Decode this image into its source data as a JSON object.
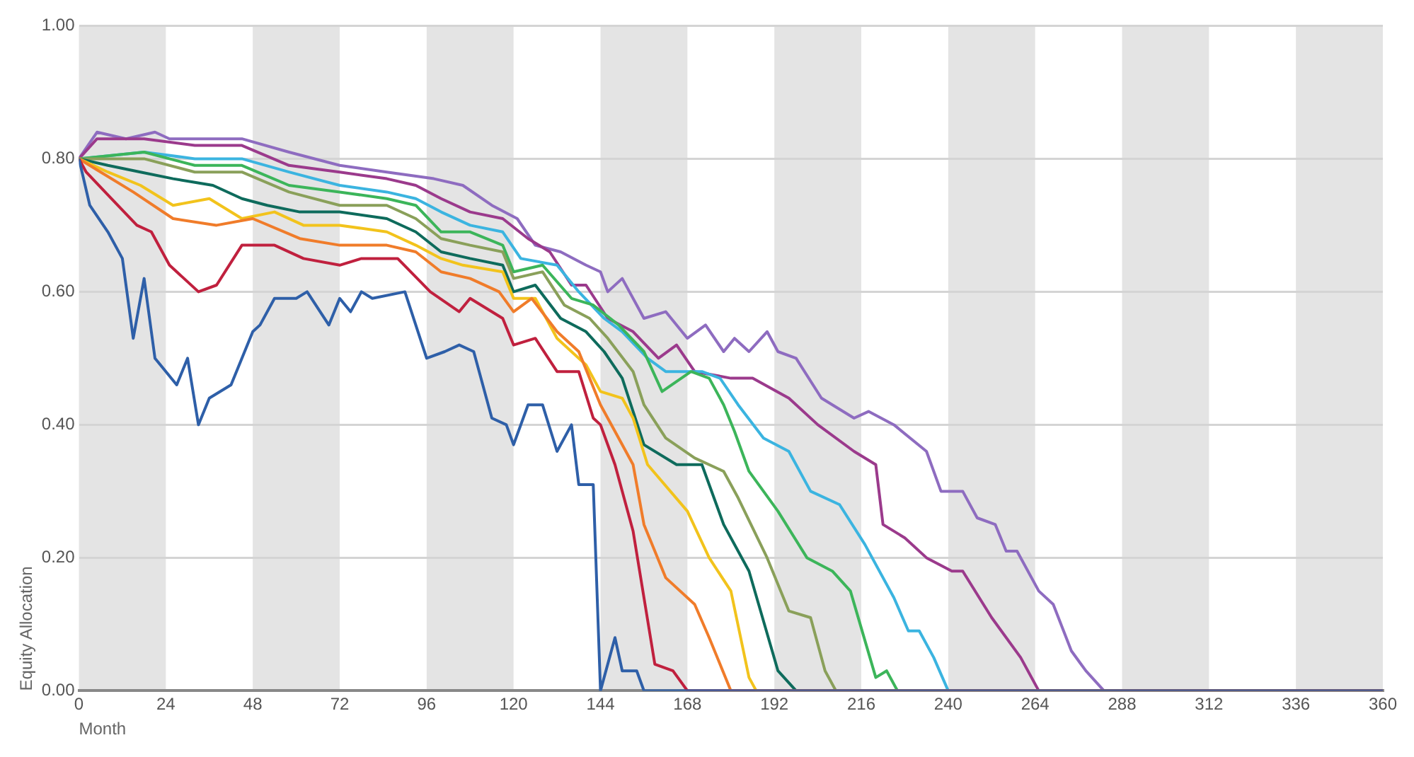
{
  "chart_data": {
    "type": "line",
    "xlabel": "Month",
    "ylabel": "Equity Allocation",
    "xlim": [
      0,
      360
    ],
    "xticks": [
      0,
      24,
      48,
      72,
      96,
      120,
      144,
      168,
      192,
      216,
      240,
      264,
      288,
      312,
      336,
      360
    ],
    "ylim": [
      0,
      1
    ],
    "yticks": [
      {
        "value": 0,
        "label": "0.00"
      },
      {
        "value": 0.2,
        "label": "0.20"
      },
      {
        "value": 0.4,
        "label": "0.40"
      },
      {
        "value": 0.6,
        "label": "0.60"
      },
      {
        "value": 0.8,
        "label": "0.80"
      },
      {
        "value": 1,
        "label": "1.00"
      }
    ],
    "grid": "y",
    "marker": "none",
    "line_style": "solid",
    "bands": [
      {
        "axis": "x",
        "from": 0,
        "to": 24,
        "color": "#e4e4e4"
      },
      {
        "axis": "x",
        "from": 48,
        "to": 72,
        "color": "#e4e4e4"
      },
      {
        "axis": "x",
        "from": 96,
        "to": 120,
        "color": "#e4e4e4"
      },
      {
        "axis": "x",
        "from": 144,
        "to": 168,
        "color": "#e4e4e4"
      },
      {
        "axis": "x",
        "from": 192,
        "to": 216,
        "color": "#e4e4e4"
      },
      {
        "axis": "x",
        "from": 240,
        "to": 264,
        "color": "#e4e4e4"
      },
      {
        "axis": "x",
        "from": 288,
        "to": 312,
        "color": "#e4e4e4"
      },
      {
        "axis": "x",
        "from": 336,
        "to": 360,
        "color": "#e4e4e4"
      }
    ],
    "series": [
      {
        "color": "#2e5fa8",
        "x": [
          0,
          3,
          8,
          12,
          15,
          18,
          21,
          27,
          30,
          33,
          36,
          42,
          48,
          50,
          54,
          60,
          63,
          69,
          72,
          75,
          78,
          81,
          90,
          96,
          101,
          105,
          109,
          114,
          118,
          120,
          124,
          128,
          132,
          136,
          138,
          142,
          144,
          148,
          150,
          154,
          156,
          360
        ],
        "values": [
          0.8,
          0.73,
          0.69,
          0.65,
          0.53,
          0.62,
          0.5,
          0.46,
          0.5,
          0.4,
          0.44,
          0.46,
          0.54,
          0.55,
          0.59,
          0.59,
          0.6,
          0.55,
          0.59,
          0.57,
          0.6,
          0.59,
          0.6,
          0.5,
          0.51,
          0.52,
          0.51,
          0.41,
          0.4,
          0.37,
          0.43,
          0.43,
          0.36,
          0.4,
          0.31,
          0.31,
          0,
          0.08,
          0.03,
          0.03,
          0,
          0
        ]
      },
      {
        "color": "#c0203e",
        "x": [
          0,
          2,
          9,
          16,
          20,
          25,
          33,
          38,
          45,
          54,
          62,
          72,
          78,
          88,
          97,
          105,
          108,
          117,
          120,
          126,
          132,
          138,
          142,
          144,
          148,
          153,
          159,
          164,
          168,
          360
        ],
        "values": [
          0.8,
          0.78,
          0.74,
          0.7,
          0.69,
          0.64,
          0.6,
          0.61,
          0.67,
          0.67,
          0.65,
          0.64,
          0.65,
          0.65,
          0.6,
          0.57,
          0.59,
          0.56,
          0.52,
          0.53,
          0.48,
          0.48,
          0.41,
          0.4,
          0.34,
          0.24,
          0.04,
          0.03,
          0,
          0
        ]
      },
      {
        "color": "#f07c2a",
        "x": [
          0,
          6,
          15,
          26,
          38,
          48,
          61,
          72,
          85,
          93,
          100,
          108,
          116,
          120,
          125,
          132,
          138,
          144,
          148,
          153,
          156,
          162,
          170,
          174,
          180,
          360
        ],
        "values": [
          0.8,
          0.78,
          0.75,
          0.71,
          0.7,
          0.71,
          0.68,
          0.67,
          0.67,
          0.66,
          0.63,
          0.62,
          0.6,
          0.57,
          0.59,
          0.54,
          0.51,
          0.43,
          0.39,
          0.34,
          0.25,
          0.17,
          0.13,
          0.08,
          0,
          0
        ]
      },
      {
        "color": "#f2c31c",
        "x": [
          0,
          8,
          17,
          26,
          36,
          45,
          54,
          62,
          72,
          85,
          93,
          100,
          106,
          117,
          120,
          126,
          132,
          140,
          144,
          150,
          153,
          157,
          168,
          174,
          180,
          185,
          187,
          360
        ],
        "values": [
          0.8,
          0.78,
          0.76,
          0.73,
          0.74,
          0.71,
          0.72,
          0.7,
          0.7,
          0.69,
          0.67,
          0.65,
          0.64,
          0.63,
          0.59,
          0.59,
          0.53,
          0.49,
          0.45,
          0.44,
          0.41,
          0.34,
          0.27,
          0.2,
          0.15,
          0.02,
          0,
          0
        ]
      },
      {
        "color": "#0e6b5c",
        "x": [
          0,
          8,
          17,
          26,
          37,
          45,
          52,
          61,
          72,
          85,
          93,
          100,
          108,
          117,
          120,
          126,
          133,
          140,
          145,
          150,
          156,
          165,
          172,
          178,
          185,
          193,
          198,
          360
        ],
        "values": [
          0.8,
          0.79,
          0.78,
          0.77,
          0.76,
          0.74,
          0.73,
          0.72,
          0.72,
          0.71,
          0.69,
          0.66,
          0.65,
          0.64,
          0.6,
          0.61,
          0.56,
          0.54,
          0.51,
          0.47,
          0.37,
          0.34,
          0.34,
          0.25,
          0.18,
          0.03,
          0,
          0
        ]
      },
      {
        "color": "#8aa05a",
        "x": [
          0,
          18,
          32,
          45,
          58,
          72,
          85,
          93,
          100,
          108,
          117,
          120,
          128,
          134,
          141,
          146,
          153,
          156,
          162,
          170,
          178,
          182,
          190,
          196,
          202,
          206,
          209,
          360
        ],
        "values": [
          0.8,
          0.8,
          0.78,
          0.78,
          0.75,
          0.73,
          0.73,
          0.71,
          0.68,
          0.67,
          0.66,
          0.62,
          0.63,
          0.58,
          0.56,
          0.53,
          0.48,
          0.43,
          0.38,
          0.35,
          0.33,
          0.29,
          0.2,
          0.12,
          0.11,
          0.03,
          0,
          0
        ]
      },
      {
        "color": "#3cb55a",
        "x": [
          0,
          18,
          32,
          45,
          58,
          72,
          85,
          93,
          100,
          108,
          117,
          120,
          128,
          136,
          142,
          149,
          156,
          161,
          169,
          174,
          178,
          181,
          185,
          193,
          201,
          208,
          213,
          220,
          223,
          226,
          360
        ],
        "values": [
          0.8,
          0.81,
          0.79,
          0.79,
          0.76,
          0.75,
          0.74,
          0.73,
          0.69,
          0.69,
          0.67,
          0.63,
          0.64,
          0.59,
          0.58,
          0.55,
          0.51,
          0.45,
          0.48,
          0.47,
          0.43,
          0.39,
          0.33,
          0.27,
          0.2,
          0.18,
          0.15,
          0.02,
          0.03,
          0,
          0
        ]
      },
      {
        "color": "#3bb4e0",
        "x": [
          0,
          18,
          32,
          45,
          58,
          72,
          85,
          93,
          100,
          108,
          117,
          122,
          132,
          138,
          145,
          150,
          157,
          162,
          172,
          177,
          182,
          189,
          196,
          202,
          210,
          217,
          225,
          229,
          232,
          236,
          240,
          360
        ],
        "values": [
          0.8,
          0.81,
          0.8,
          0.8,
          0.78,
          0.76,
          0.75,
          0.74,
          0.72,
          0.7,
          0.69,
          0.65,
          0.64,
          0.6,
          0.56,
          0.54,
          0.5,
          0.48,
          0.48,
          0.47,
          0.43,
          0.38,
          0.36,
          0.3,
          0.28,
          0.22,
          0.14,
          0.09,
          0.09,
          0.05,
          0,
          0
        ]
      },
      {
        "color": "#9b3a8c",
        "x": [
          0,
          5,
          18,
          32,
          45,
          58,
          72,
          85,
          93,
          100,
          108,
          117,
          124,
          130,
          136,
          140,
          146,
          153,
          160,
          165,
          170,
          180,
          186,
          196,
          204,
          214,
          220,
          222,
          228,
          234,
          241,
          244,
          252,
          260,
          265,
          360
        ],
        "values": [
          0.8,
          0.83,
          0.83,
          0.82,
          0.82,
          0.79,
          0.78,
          0.77,
          0.76,
          0.74,
          0.72,
          0.71,
          0.68,
          0.66,
          0.61,
          0.61,
          0.56,
          0.54,
          0.5,
          0.52,
          0.48,
          0.47,
          0.47,
          0.44,
          0.4,
          0.36,
          0.34,
          0.25,
          0.23,
          0.2,
          0.18,
          0.18,
          0.11,
          0.05,
          0,
          0
        ]
      },
      {
        "color": "#8e6cc0",
        "x": [
          0,
          5,
          13,
          21,
          25,
          45,
          58,
          72,
          85,
          98,
          106,
          114,
          121,
          126,
          133,
          140,
          144,
          146,
          150,
          156,
          162,
          168,
          173,
          178,
          181,
          185,
          190,
          193,
          198,
          205,
          214,
          218,
          225,
          234,
          238,
          244,
          248,
          253,
          256,
          259,
          265,
          269,
          274,
          278,
          283,
          360
        ],
        "values": [
          0.8,
          0.84,
          0.83,
          0.84,
          0.83,
          0.83,
          0.81,
          0.79,
          0.78,
          0.77,
          0.76,
          0.73,
          0.71,
          0.67,
          0.66,
          0.64,
          0.63,
          0.6,
          0.62,
          0.56,
          0.57,
          0.53,
          0.55,
          0.51,
          0.53,
          0.51,
          0.54,
          0.51,
          0.5,
          0.44,
          0.41,
          0.42,
          0.4,
          0.36,
          0.3,
          0.3,
          0.26,
          0.25,
          0.21,
          0.21,
          0.15,
          0.13,
          0.06,
          0.03,
          0,
          0
        ]
      }
    ]
  }
}
